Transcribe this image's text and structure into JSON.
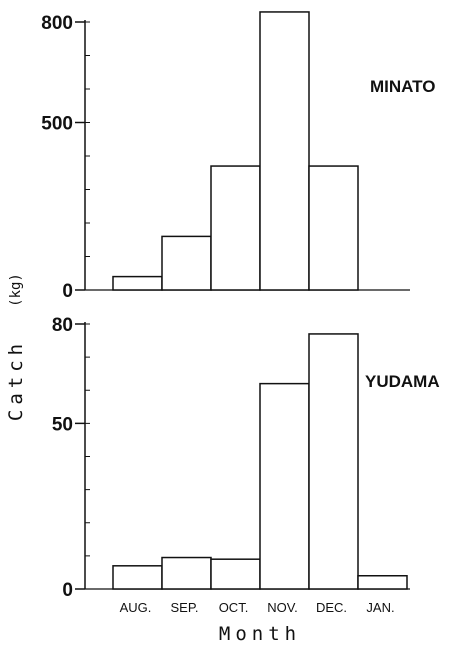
{
  "chart_data": [
    {
      "type": "bar",
      "title": "MINATO",
      "categories": [
        "AUG.",
        "SEP.",
        "OCT.",
        "NOV.",
        "DEC.",
        "JAN."
      ],
      "values": [
        40,
        160,
        370,
        830,
        370,
        0
      ],
      "ylim": [
        0,
        800
      ],
      "yticks": [
        0,
        500,
        800
      ],
      "ytick_labels": [
        "0",
        "500",
        "800"
      ],
      "grid": false
    },
    {
      "type": "bar",
      "title": "YUDAMA",
      "categories": [
        "AUG.",
        "SEP.",
        "OCT.",
        "NOV.",
        "DEC.",
        "JAN."
      ],
      "values": [
        7,
        9.5,
        9,
        62,
        77,
        4
      ],
      "ylim": [
        0,
        80
      ],
      "yticks": [
        0,
        50,
        80
      ],
      "ytick_labels": [
        "0",
        "50",
        "80"
      ],
      "grid": false
    }
  ],
  "shared": {
    "xlabel": "Month",
    "ylabel": "Catch",
    "yunit": "(kg)"
  }
}
